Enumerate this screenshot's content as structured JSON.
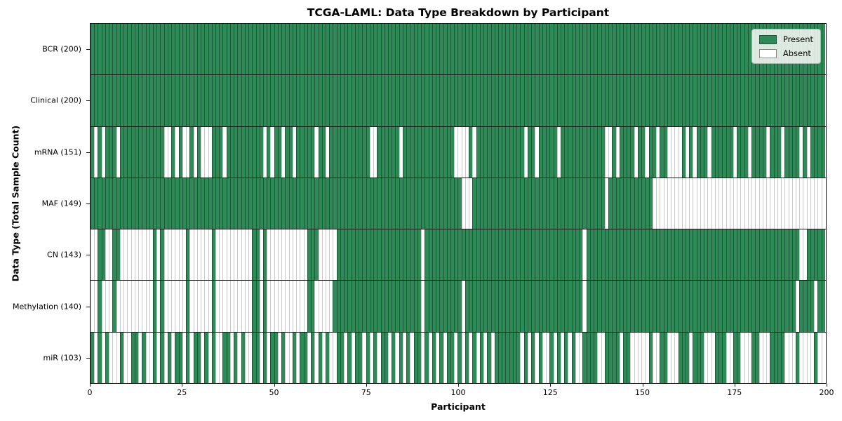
{
  "title": "TCGA-LAML: Data Type Breakdown by Participant",
  "xlabel": "Participant",
  "ylabel": "Data Type (Total Sample Count)",
  "legend": {
    "present_label": "Present",
    "absent_label": "Absent",
    "position": "upper right"
  },
  "colors": {
    "present": "#2e8b57",
    "present_edge": "#1d5737",
    "absent": "#ffffff",
    "absent_edge": "#c9c9c9",
    "axis": "#1a1a1a"
  },
  "chart_data": {
    "type": "heatmap",
    "title": "TCGA-LAML: Data Type Breakdown by Participant",
    "xlabel": "Participant",
    "ylabel": "Data Type (Total Sample Count)",
    "x_range": [
      0,
      200
    ],
    "participants": 200,
    "xticks": [
      0,
      25,
      50,
      75,
      100,
      125,
      150,
      175,
      200
    ],
    "grid": false,
    "legend": [
      "Present",
      "Absent"
    ],
    "legend_position": "upper right",
    "value_encoding": {
      "1": "Present",
      "0": "Absent"
    },
    "rows": [
      {
        "data_type": "BCR",
        "label": "BCR (200)",
        "total": 200,
        "present_mask": "11111111111111111111111111111111111111111111111111111111111111111111111111111111111111111111111111111111111111111111111111111111111111111111111111111111111111111111111111111111111111111111111111111111"
      },
      {
        "data_type": "Clinical",
        "label": "Clinical (200)",
        "total": 200,
        "present_mask": "11111111111111111111111111111111111111111111111111111111111111111111111111111111111111111111111111111111111111111111111111111111111111111111111111111111111111111111111111111111111111111111111111111111"
      },
      {
        "data_type": "mRNA",
        "label": "mRNA (151)",
        "total": 151,
        "present_mask": "10101110111111111111001010010100011101111111111010110110111110110111111111110011111101111111111111100001011111111111110110111110111111111111001011110110110110000101011101111110111011110111011110101111"
      },
      {
        "data_type": "MAF",
        "label": "MAF (149)",
        "total": 149,
        "present_mask": "11111111111111111111111111111111111111111111111111111111111111111111111111111111111111111111111111111000111111111111111111111111111111111111011111111111100000000000000000000000000000000000000000000000"
      },
      {
        "data_type": "CN",
        "label": "CN (143)",
        "total": 143,
        "present_mask": "00110011000000000101000000100000010000000000110100000000000111000001111111111111111111111101111111111111111111111111111111111111111111011111111111111111111111111111111111111111111111111111111110011111 1111"
      },
      {
        "data_type": "Methylation",
        "label": "Methylation (140)",
        "total": 140,
        "present_mask": "00100010000000000101000000100000010000000000110100000000000110000011111111111111111111111101111111111011111111111111111111111111111111011111111111111111111111111111111111111111111111111111111101111011 11"
      },
      {
        "data_type": "miR",
        "label": "miR (103)",
        "total": 103,
        "present_mask": "10101000100110100101010110101101010011010100110101101001011010101001101011010101101010101101010101101010101010111111101010100101010100111100111101100000100110001110111000111001100011000111100010000100"
      }
    ]
  }
}
